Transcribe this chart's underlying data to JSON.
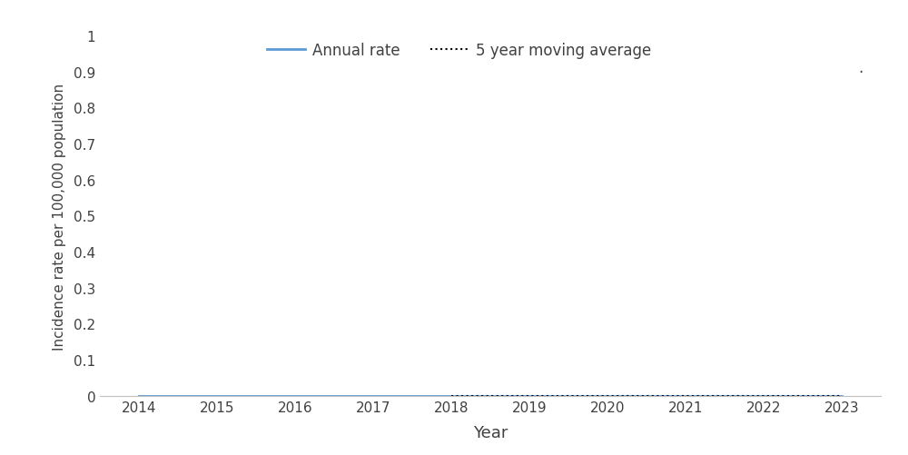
{
  "years": [
    2014,
    2015,
    2016,
    2017,
    2018,
    2019,
    2020,
    2021,
    2022,
    2023
  ],
  "annual_rate": [
    0.0,
    0.0,
    0.0,
    0.0,
    0.0,
    0.0,
    0.0,
    0.0,
    0.0,
    0.0
  ],
  "moving_avg_years": [
    2018,
    2019,
    2020,
    2021,
    2022,
    2023
  ],
  "moving_avg": [
    0.0,
    0.0,
    0.0,
    0.0,
    0.0,
    0.0
  ],
  "annual_rate_color": "#5B9BD5",
  "moving_avg_color": "#000000",
  "ylabel": "Incidence rate per 100,000 population",
  "xlabel": "Year",
  "ylim": [
    0,
    1
  ],
  "yticks": [
    0,
    0.1,
    0.2,
    0.3,
    0.4,
    0.5,
    0.6,
    0.7,
    0.8,
    0.9,
    1
  ],
  "ytick_labels": [
    "0",
    "0.1",
    "0.2",
    "0.3",
    "0.4",
    "0.5",
    "0.6",
    "0.7",
    "0.8",
    "0.9",
    "1"
  ],
  "xlim": [
    2013.5,
    2023.5
  ],
  "xticks": [
    2014,
    2015,
    2016,
    2017,
    2018,
    2019,
    2020,
    2021,
    2022,
    2023
  ],
  "legend_annual_label": "Annual rate",
  "legend_moving_label": "5 year moving average",
  "background_color": "#ffffff",
  "annotation_text": ".",
  "spine_color": "#c0c0c0",
  "text_color": "#404040"
}
